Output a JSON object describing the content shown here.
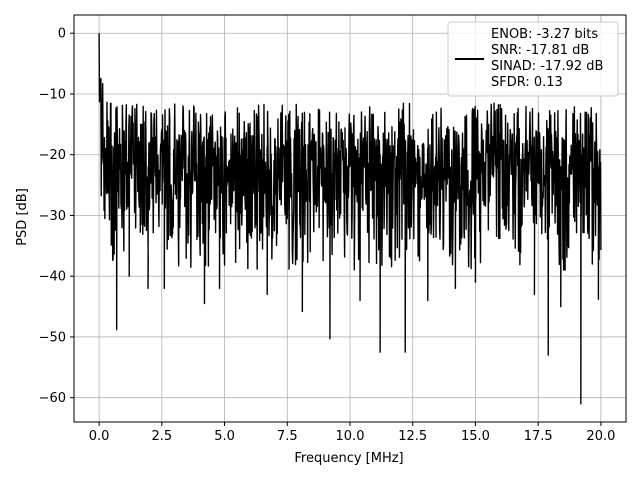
{
  "chart_data": {
    "type": "line",
    "title": "",
    "xlabel": "Frequency [MHz]",
    "ylabel": "PSD [dB]",
    "xlim": [
      -1.0,
      21.0
    ],
    "ylim": [
      -64.0,
      3.0
    ],
    "xticks": [
      0.0,
      2.5,
      5.0,
      7.5,
      10.0,
      12.5,
      15.0,
      17.5,
      20.0
    ],
    "xtick_labels": [
      "0.0",
      "2.5",
      "5.0",
      "7.5",
      "10.0",
      "12.5",
      "15.0",
      "17.5",
      "20.0"
    ],
    "yticks": [
      0,
      -10,
      -20,
      -30,
      -40,
      -50,
      -60
    ],
    "ytick_labels": [
      "0",
      "−10",
      "−20",
      "−30",
      "−40",
      "−50",
      "−60"
    ],
    "grid": true,
    "legend_position": "top-right",
    "series": [
      {
        "name": "",
        "color": "#000000",
        "style": "dense noise floor, mean about -22 dB with fluctuations between about -12 dB and -35 dB",
        "x": [
          0.0,
          0.05,
          0.1,
          0.2,
          0.3,
          0.5,
          1.0,
          2.0,
          5.0,
          10.0,
          15.0,
          20.0
        ],
        "y": [
          0.0,
          -8.0,
          -14.0,
          -18.0,
          -20.0,
          -21.0,
          -22.0,
          -22.0,
          -22.0,
          -22.0,
          -22.0,
          -22.0
        ],
        "deep_dips": [
          {
            "x": 0.7,
            "y": -48.8
          },
          {
            "x": 1.2,
            "y": -40.0
          },
          {
            "x": 1.95,
            "y": -42.0
          },
          {
            "x": 2.6,
            "y": -42.0
          },
          {
            "x": 4.2,
            "y": -44.5
          },
          {
            "x": 4.8,
            "y": -42.0
          },
          {
            "x": 6.7,
            "y": -43.0
          },
          {
            "x": 8.1,
            "y": -45.8
          },
          {
            "x": 9.2,
            "y": -50.3
          },
          {
            "x": 10.4,
            "y": -44.0
          },
          {
            "x": 11.2,
            "y": -52.5
          },
          {
            "x": 12.2,
            "y": -52.5
          },
          {
            "x": 13.1,
            "y": -44.0
          },
          {
            "x": 14.2,
            "y": -42.0
          },
          {
            "x": 15.0,
            "y": -41.0
          },
          {
            "x": 17.35,
            "y": -43.0
          },
          {
            "x": 17.9,
            "y": -53.0
          },
          {
            "x": 18.4,
            "y": -45.0
          },
          {
            "x": 19.2,
            "y": -61.0
          },
          {
            "x": 19.9,
            "y": -43.8
          }
        ]
      }
    ],
    "legend": {
      "line_color": "#000000",
      "entries": [
        "ENOB: -3.27 bits",
        "SNR: -17.81 dB",
        "SINAD: -17.92 dB",
        "SFDR: 0.13"
      ]
    }
  }
}
